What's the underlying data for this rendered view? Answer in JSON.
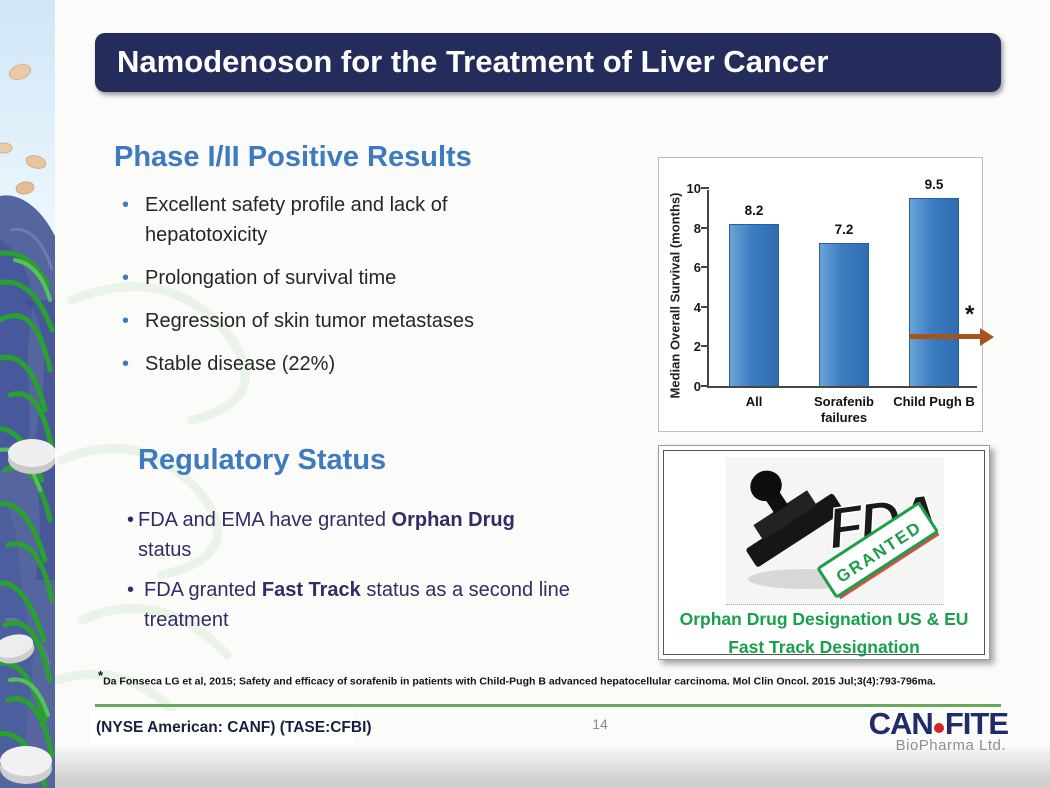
{
  "slide": {
    "title": "Namodenoson for the Treatment of Liver Cancer",
    "page_number": "14",
    "bullet_char": "•",
    "ticker": "(NYSE American: CANF) (TASE:CFBI)",
    "footnote_marker": "*",
    "footnote": "Da Fonseca LG et al, 2015; Safety and efficacy of sorafenib in patients with Child-Pugh B advanced hepatocellular carcinoma. Mol Clin Oncol. 2015 Jul;3(4):793-796ma."
  },
  "phase_section": {
    "heading": "Phase I/II Positive Results",
    "bullets": [
      "Excellent safety profile and lack of hepatotoxicity",
      "Prolongation of survival time",
      "Regression of skin tumor metastases",
      "Stable disease (22%)"
    ]
  },
  "regulatory_section": {
    "heading": "Regulatory Status",
    "bullets": [
      {
        "pre": "FDA and EMA have granted ",
        "bold": "Orphan Drug",
        "post": " status"
      },
      {
        "pre": "FDA granted ",
        "bold": "Fast Track",
        "post": " status as a second line treatment"
      }
    ]
  },
  "chart_data": {
    "type": "bar",
    "categories": [
      "All",
      "Sorafenib failures",
      "Child Pugh B"
    ],
    "values": [
      8.2,
      7.2,
      9.5
    ],
    "value_labels": [
      "8.2",
      "7.2",
      "9.5"
    ],
    "title": "",
    "xlabel": "",
    "ylabel": "Median Overall Survival (months)",
    "ylim": [
      0,
      10
    ],
    "yticks": [
      0,
      2,
      4,
      6,
      8,
      10
    ],
    "grid": false,
    "legend": false,
    "bar_colors": {
      "light": "#6ba3d8",
      "mid": "#3c7dc1",
      "dark": "#2f6cb0",
      "border": "#2a5f9e"
    },
    "annotation": {
      "symbol": "*",
      "arrow_y": 2.5,
      "arrow_color": "#a5541e",
      "target_category": "Child Pugh B"
    }
  },
  "stamp_panel": {
    "fda_text": "FDA",
    "granted_text": "GRANTED",
    "line1": "Orphan Drug Designation US & EU",
    "line2": "Fast Track Designation",
    "text_color": "#17a14b"
  },
  "logo": {
    "part1": "CAN",
    "part2": "FITE",
    "subtitle": "BioPharma Ltd."
  },
  "colors": {
    "title_bar": "#242c5c",
    "heading_blue": "#3d7abf",
    "body_text": "#262626",
    "regulatory_text": "#362a66",
    "green_rule": "#68a95e",
    "stamp_green": "#17a14b",
    "logo_navy": "#1f2b6b",
    "logo_red": "#d42428",
    "arrow_brown": "#a5541e",
    "bar_blue": "#3c7dc1"
  }
}
